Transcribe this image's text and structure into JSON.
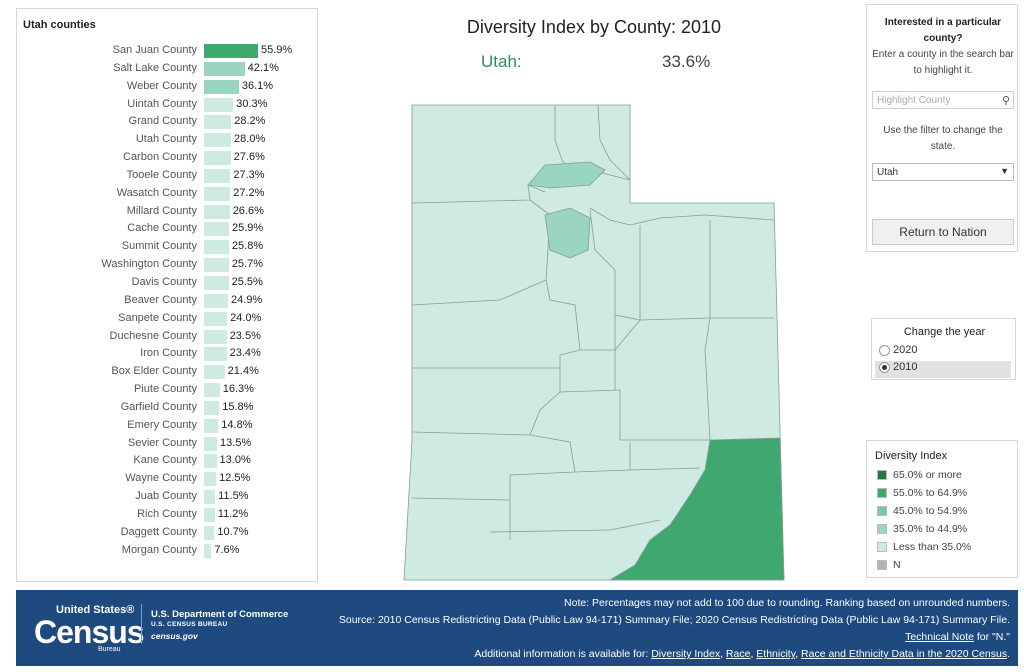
{
  "left_panel": {
    "title": "Utah counties",
    "counties": [
      {
        "name": "San Juan County",
        "value": 55.9,
        "label": "55.9%"
      },
      {
        "name": "Salt Lake County",
        "value": 42.1,
        "label": "42.1%"
      },
      {
        "name": "Weber County",
        "value": 36.1,
        "label": "36.1%"
      },
      {
        "name": "Uintah County",
        "value": 30.3,
        "label": "30.3%"
      },
      {
        "name": "Grand County",
        "value": 28.2,
        "label": "28.2%"
      },
      {
        "name": "Utah County",
        "value": 28.0,
        "label": "28.0%"
      },
      {
        "name": "Carbon County",
        "value": 27.6,
        "label": "27.6%"
      },
      {
        "name": "Tooele County",
        "value": 27.3,
        "label": "27.3%"
      },
      {
        "name": "Wasatch County",
        "value": 27.2,
        "label": "27.2%"
      },
      {
        "name": "Millard County",
        "value": 26.6,
        "label": "26.6%"
      },
      {
        "name": "Cache County",
        "value": 25.9,
        "label": "25.9%"
      },
      {
        "name": "Summit County",
        "value": 25.8,
        "label": "25.8%"
      },
      {
        "name": "Washington County",
        "value": 25.7,
        "label": "25.7%"
      },
      {
        "name": "Davis County",
        "value": 25.5,
        "label": "25.5%"
      },
      {
        "name": "Beaver County",
        "value": 24.9,
        "label": "24.9%"
      },
      {
        "name": "Sanpete County",
        "value": 24.0,
        "label": "24.0%"
      },
      {
        "name": "Duchesne County",
        "value": 23.5,
        "label": "23.5%"
      },
      {
        "name": "Iron County",
        "value": 23.4,
        "label": "23.4%"
      },
      {
        "name": "Box Elder County",
        "value": 21.4,
        "label": "21.4%"
      },
      {
        "name": "Piute County",
        "value": 16.3,
        "label": "16.3%"
      },
      {
        "name": "Garfield County",
        "value": 15.8,
        "label": "15.8%"
      },
      {
        "name": "Emery County",
        "value": 14.8,
        "label": "14.8%"
      },
      {
        "name": "Sevier County",
        "value": 13.5,
        "label": "13.5%"
      },
      {
        "name": "Kane County",
        "value": 13.0,
        "label": "13.0%"
      },
      {
        "name": "Wayne County",
        "value": 12.5,
        "label": "12.5%"
      },
      {
        "name": "Juab County",
        "value": 11.5,
        "label": "11.5%"
      },
      {
        "name": "Rich County",
        "value": 11.2,
        "label": "11.2%"
      },
      {
        "name": "Daggett County",
        "value": 10.7,
        "label": "10.7%"
      },
      {
        "name": "Morgan County",
        "value": 7.6,
        "label": "7.6%"
      }
    ]
  },
  "map": {
    "title": "Diversity Index by County: 2010",
    "state_name": "Utah:",
    "state_value": "33.6%",
    "colors": {
      "bin1": "#cfeae2",
      "bin2": "#99d5c1",
      "bin3": "#7cc7a4",
      "bin4": "#3fa870",
      "bin5": "#1f7a40",
      "border": "#8c9a95"
    }
  },
  "search_panel": {
    "heading": "Interested in a particular county?",
    "instructions": "Enter a county in the search bar to highlight it.",
    "search_placeholder": "Highlight County",
    "filter_text": "Use the filter to change the state.",
    "state_selected": "Utah",
    "return_button": "Return to Nation"
  },
  "year_panel": {
    "title": "Change the year",
    "options": [
      {
        "label": "2020",
        "selected": false
      },
      {
        "label": "2010",
        "selected": true
      }
    ]
  },
  "legend": {
    "title": "Diversity Index",
    "items": [
      {
        "label": "65.0% or more",
        "color": "#1f7a40"
      },
      {
        "label": "55.0% to 64.9%",
        "color": "#3fa870"
      },
      {
        "label": "45.0% to 54.9%",
        "color": "#7cc7a4"
      },
      {
        "label": "35.0% to 44.9%",
        "color": "#99d5c1"
      },
      {
        "label": "Less than 35.0%",
        "color": "#cfeae2"
      },
      {
        "label": "N",
        "color": "#b8b0ab"
      }
    ]
  },
  "footer": {
    "logo_top": "United States®",
    "logo_main": "Census",
    "logo_bottom": "Bureau",
    "dept": "U.S. Department of Commerce",
    "dept_sub": "U.S. CENSUS BUREAU",
    "dept_url": "census.gov",
    "note": "Note: Percentages may not add to 100 due to rounding. Ranking based on unrounded numbers.",
    "source": "Source: 2010 Census Redistricting Data (Public Law 94-171) Summary File; 2020 Census Redistricting Data (Public Law 94-171) Summary File.",
    "technical_note_link": "Technical Note",
    "technical_note_tail": " for \"N.\"",
    "additional_prefix": "Additional information is available for: ",
    "links": [
      "Diversity Index",
      "Race",
      "Ethnicity",
      "Race and Ethnicity Data in the 2020 Census"
    ]
  }
}
